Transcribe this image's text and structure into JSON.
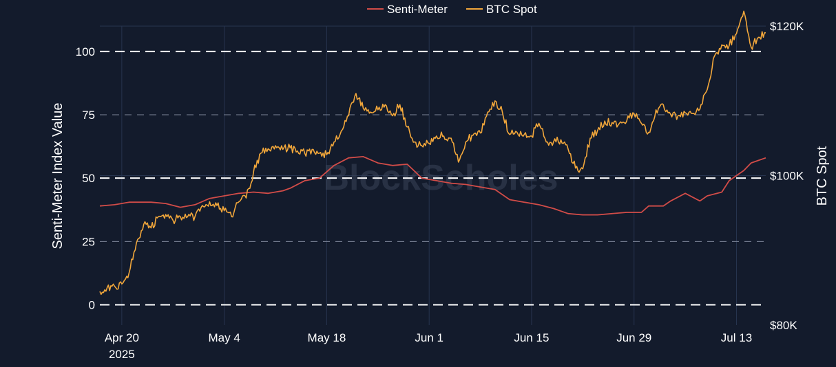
{
  "colors": {
    "background": "#131b2c",
    "senti": "#d24c48",
    "btc": "#f2a73b",
    "grid": "#27344f",
    "text": "#ffffff",
    "watermark": "#3a4458"
  },
  "watermark": "BlockScholes",
  "chart_data": {
    "type": "line",
    "legend": {
      "placement": "top-center",
      "entries": [
        "Senti-Meter",
        "BTC Spot"
      ]
    },
    "xlabel": "",
    "x_range": [
      "2025-04-17",
      "2025-07-17"
    ],
    "x_ticks": [
      {
        "date": "2025-04-20",
        "label": "Apr 20",
        "sublabel": "2025"
      },
      {
        "date": "2025-05-04",
        "label": "May 4",
        "sublabel": ""
      },
      {
        "date": "2025-05-18",
        "label": "May 18",
        "sublabel": ""
      },
      {
        "date": "2025-06-01",
        "label": "Jun 1",
        "sublabel": ""
      },
      {
        "date": "2025-06-15",
        "label": "Jun 15",
        "sublabel": ""
      },
      {
        "date": "2025-06-29",
        "label": "Jun 29",
        "sublabel": ""
      },
      {
        "date": "2025-07-13",
        "label": "Jul 13",
        "sublabel": ""
      }
    ],
    "y_left": {
      "label": "Senti-Meter Index Value",
      "range": [
        -8,
        110
      ],
      "ticks": [
        0,
        25,
        50,
        75,
        100
      ],
      "dashed_lines": [
        {
          "value": 0,
          "style": "bold"
        },
        {
          "value": 25,
          "style": "thin"
        },
        {
          "value": 50,
          "style": "bold"
        },
        {
          "value": 75,
          "style": "thin"
        },
        {
          "value": 100,
          "style": "bold"
        }
      ]
    },
    "y_right": {
      "label": "BTC Spot",
      "range": [
        80000,
        120000
      ],
      "ticks": [
        {
          "value": 80000,
          "label": "$80K"
        },
        {
          "value": 100000,
          "label": "$100K"
        },
        {
          "value": 120000,
          "label": "$120K"
        }
      ]
    },
    "grid": true,
    "series": [
      {
        "name": "Senti-Meter",
        "axis": "left",
        "points": [
          [
            "2025-04-17",
            39
          ],
          [
            "2025-04-19",
            39.5
          ],
          [
            "2025-04-21",
            40.5
          ],
          [
            "2025-04-24",
            40.5
          ],
          [
            "2025-04-26",
            40
          ],
          [
            "2025-04-28",
            38.5
          ],
          [
            "2025-04-30",
            39.5
          ],
          [
            "2025-05-02",
            42
          ],
          [
            "2025-05-04",
            43
          ],
          [
            "2025-05-06",
            44
          ],
          [
            "2025-05-08",
            44.5
          ],
          [
            "2025-05-10",
            44
          ],
          [
            "2025-05-12",
            45
          ],
          [
            "2025-05-13",
            46
          ],
          [
            "2025-05-15",
            49
          ],
          [
            "2025-05-17",
            50
          ],
          [
            "2025-05-19",
            55
          ],
          [
            "2025-05-21",
            58
          ],
          [
            "2025-05-23",
            58.5
          ],
          [
            "2025-05-25",
            56
          ],
          [
            "2025-05-27",
            55
          ],
          [
            "2025-05-29",
            55.5
          ],
          [
            "2025-05-31",
            50
          ],
          [
            "2025-06-02",
            49
          ],
          [
            "2025-06-04",
            48
          ],
          [
            "2025-06-06",
            47.5
          ],
          [
            "2025-06-08",
            46.5
          ],
          [
            "2025-06-10",
            45.5
          ],
          [
            "2025-06-12",
            41.5
          ],
          [
            "2025-06-14",
            40.5
          ],
          [
            "2025-06-16",
            39.5
          ],
          [
            "2025-06-18",
            38
          ],
          [
            "2025-06-20",
            36
          ],
          [
            "2025-06-22",
            35.5
          ],
          [
            "2025-06-24",
            35.5
          ],
          [
            "2025-06-26",
            36
          ],
          [
            "2025-06-28",
            36.5
          ],
          [
            "2025-06-30",
            36.5
          ],
          [
            "2025-07-01",
            39
          ],
          [
            "2025-07-03",
            39
          ],
          [
            "2025-07-04",
            41
          ],
          [
            "2025-07-06",
            44
          ],
          [
            "2025-07-08",
            41
          ],
          [
            "2025-07-09",
            43
          ],
          [
            "2025-07-11",
            44.5
          ],
          [
            "2025-07-12",
            49
          ],
          [
            "2025-07-13",
            51
          ],
          [
            "2025-07-14",
            53
          ],
          [
            "2025-07-15",
            56
          ],
          [
            "2025-07-16",
            57
          ],
          [
            "2025-07-17",
            58
          ]
        ]
      },
      {
        "name": "BTC Spot",
        "axis": "right",
        "points": [
          [
            "2025-04-17",
            84500
          ],
          [
            "2025-04-18",
            85000
          ],
          [
            "2025-04-19",
            85200
          ],
          [
            "2025-04-20",
            85500
          ],
          [
            "2025-04-21",
            87000
          ],
          [
            "2025-04-22",
            91000
          ],
          [
            "2025-04-23",
            93500
          ],
          [
            "2025-04-24",
            93000
          ],
          [
            "2025-04-25",
            94500
          ],
          [
            "2025-04-26",
            94800
          ],
          [
            "2025-04-27",
            94000
          ],
          [
            "2025-04-28",
            94500
          ],
          [
            "2025-04-29",
            94500
          ],
          [
            "2025-04-30",
            94500
          ],
          [
            "2025-05-01",
            96000
          ],
          [
            "2025-05-02",
            96500
          ],
          [
            "2025-05-03",
            96000
          ],
          [
            "2025-05-04",
            95300
          ],
          [
            "2025-05-05",
            94500
          ],
          [
            "2025-05-06",
            96500
          ],
          [
            "2025-05-07",
            97000
          ],
          [
            "2025-05-08",
            100500
          ],
          [
            "2025-05-09",
            103000
          ],
          [
            "2025-05-10",
            103600
          ],
          [
            "2025-05-11",
            104000
          ],
          [
            "2025-05-12",
            103500
          ],
          [
            "2025-05-13",
            103700
          ],
          [
            "2025-05-14",
            103300
          ],
          [
            "2025-05-15",
            103000
          ],
          [
            "2025-05-16",
            103500
          ],
          [
            "2025-05-17",
            103000
          ],
          [
            "2025-05-18",
            102800
          ],
          [
            "2025-05-19",
            104500
          ],
          [
            "2025-05-20",
            106000
          ],
          [
            "2025-05-21",
            108000
          ],
          [
            "2025-05-22",
            111000
          ],
          [
            "2025-05-23",
            109000
          ],
          [
            "2025-05-24",
            108500
          ],
          [
            "2025-05-25",
            108800
          ],
          [
            "2025-05-26",
            109500
          ],
          [
            "2025-05-27",
            108000
          ],
          [
            "2025-05-28",
            109500
          ],
          [
            "2025-05-29",
            106500
          ],
          [
            "2025-05-30",
            104500
          ],
          [
            "2025-05-31",
            104000
          ],
          [
            "2025-06-01",
            104300
          ],
          [
            "2025-06-02",
            105300
          ],
          [
            "2025-06-03",
            105300
          ],
          [
            "2025-06-04",
            105000
          ],
          [
            "2025-06-05",
            101800
          ],
          [
            "2025-06-06",
            104500
          ],
          [
            "2025-06-07",
            105400
          ],
          [
            "2025-06-08",
            105700
          ],
          [
            "2025-06-09",
            108500
          ],
          [
            "2025-06-10",
            110000
          ],
          [
            "2025-06-11",
            108500
          ],
          [
            "2025-06-12",
            105500
          ],
          [
            "2025-06-13",
            105800
          ],
          [
            "2025-06-14",
            105500
          ],
          [
            "2025-06-15",
            105300
          ],
          [
            "2025-06-16",
            107000
          ],
          [
            "2025-06-17",
            104500
          ],
          [
            "2025-06-18",
            104500
          ],
          [
            "2025-06-19",
            104800
          ],
          [
            "2025-06-20",
            103500
          ],
          [
            "2025-06-21",
            101000
          ],
          [
            "2025-06-22",
            100900
          ],
          [
            "2025-06-23",
            105000
          ],
          [
            "2025-06-24",
            106000
          ],
          [
            "2025-06-25",
            107300
          ],
          [
            "2025-06-26",
            107100
          ],
          [
            "2025-06-27",
            107000
          ],
          [
            "2025-06-28",
            107300
          ],
          [
            "2025-06-29",
            108300
          ],
          [
            "2025-06-30",
            107000
          ],
          [
            "2025-07-01",
            105800
          ],
          [
            "2025-07-02",
            108800
          ],
          [
            "2025-07-03",
            109500
          ],
          [
            "2025-07-04",
            108200
          ],
          [
            "2025-07-05",
            108000
          ],
          [
            "2025-07-06",
            108400
          ],
          [
            "2025-07-07",
            108300
          ],
          [
            "2025-07-08",
            108900
          ],
          [
            "2025-07-09",
            111500
          ],
          [
            "2025-07-10",
            116000
          ],
          [
            "2025-07-11",
            117500
          ],
          [
            "2025-07-12",
            117400
          ],
          [
            "2025-07-13",
            119000
          ],
          [
            "2025-07-14",
            122000
          ],
          [
            "2025-07-15",
            117200
          ],
          [
            "2025-07-16",
            118500
          ],
          [
            "2025-07-17",
            119100
          ]
        ]
      }
    ]
  }
}
